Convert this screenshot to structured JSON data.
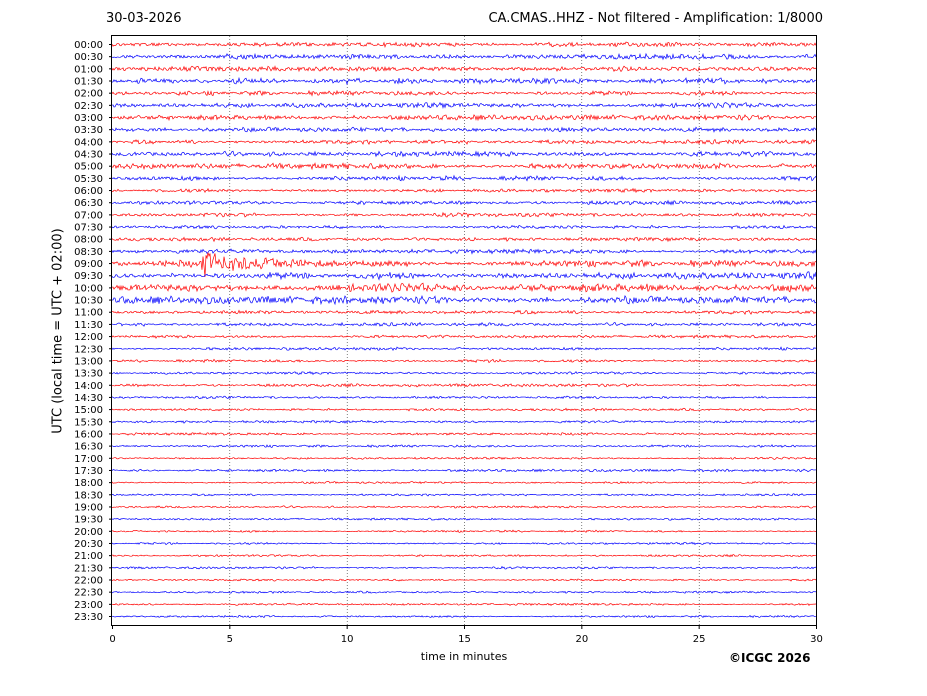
{
  "header": {
    "date": "30-03-2026",
    "title": "CA.CMAS..HHZ - Not filtered - Amplification: 1/8000"
  },
  "footer": {
    "copyright": "©ICGC 2026"
  },
  "chart_data": {
    "type": "line",
    "subtype": "helicorder",
    "title": "CA.CMAS..HHZ - Not filtered - Amplification: 1/8000",
    "xlabel": "time in minutes",
    "ylabel": "UTC (local time = UTC + 02:00)",
    "xlim": [
      0,
      30
    ],
    "x_ticks": [
      0,
      5,
      10,
      15,
      20,
      25,
      30
    ],
    "x_gridlines": true,
    "trace_colors": [
      "#ff0000",
      "#0000ff"
    ],
    "rows": [
      "00:00",
      "00:30",
      "01:00",
      "01:30",
      "02:00",
      "02:30",
      "03:00",
      "03:30",
      "04:00",
      "04:30",
      "05:00",
      "05:30",
      "06:00",
      "06:30",
      "07:00",
      "07:30",
      "08:00",
      "08:30",
      "09:00",
      "09:30",
      "10:00",
      "10:30",
      "11:00",
      "11:30",
      "12:00",
      "12:30",
      "13:00",
      "13:30",
      "14:00",
      "14:30",
      "15:00",
      "15:30",
      "16:00",
      "16:30",
      "17:00",
      "17:30",
      "18:00",
      "18:30",
      "19:00",
      "19:30",
      "20:00",
      "20:30",
      "21:00",
      "21:30",
      "22:00",
      "22:30",
      "23:00",
      "23:30"
    ],
    "noise_level": [
      0.55,
      0.65,
      0.6,
      0.7,
      0.55,
      0.6,
      0.6,
      0.55,
      0.5,
      0.6,
      0.65,
      0.55,
      0.45,
      0.45,
      0.45,
      0.4,
      0.45,
      0.5,
      0.8,
      0.85,
      1.0,
      0.9,
      0.45,
      0.4,
      0.35,
      0.35,
      0.35,
      0.3,
      0.35,
      0.3,
      0.3,
      0.3,
      0.3,
      0.3,
      0.25,
      0.3,
      0.25,
      0.25,
      0.25,
      0.25,
      0.25,
      0.25,
      0.25,
      0.25,
      0.25,
      0.25,
      0.25,
      0.25
    ],
    "events": [
      {
        "row": "09:00",
        "start_min": 3.8,
        "end_min": 9.5,
        "peak_amplitude": 2.0
      }
    ]
  }
}
